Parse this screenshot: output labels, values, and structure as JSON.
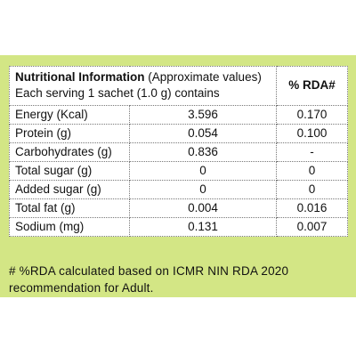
{
  "header": {
    "title": "Nutritional Information",
    "subtitle": "(Approximate values)",
    "serving": "Each serving 1 sachet (1.0 g) contains",
    "rda": "% RDA#"
  },
  "table": {
    "rows": [
      [
        "Energy (Kcal)",
        "3.596",
        "0.170"
      ],
      [
        "Protein (g)",
        "0.054",
        "0.100"
      ],
      [
        "Carbohydrates (g)",
        "0.836",
        "-"
      ],
      [
        "Total sugar (g)",
        "0",
        "0"
      ],
      [
        "Added sugar (g)",
        "0",
        "0"
      ],
      [
        "Total fat (g)",
        "0.004",
        "0.016"
      ],
      [
        "Sodium (mg)",
        "0.131",
        "0.007"
      ]
    ]
  },
  "footnote": "# %RDA calculated based on ICMR NIN RDA 2020 recommendation for Adult."
}
